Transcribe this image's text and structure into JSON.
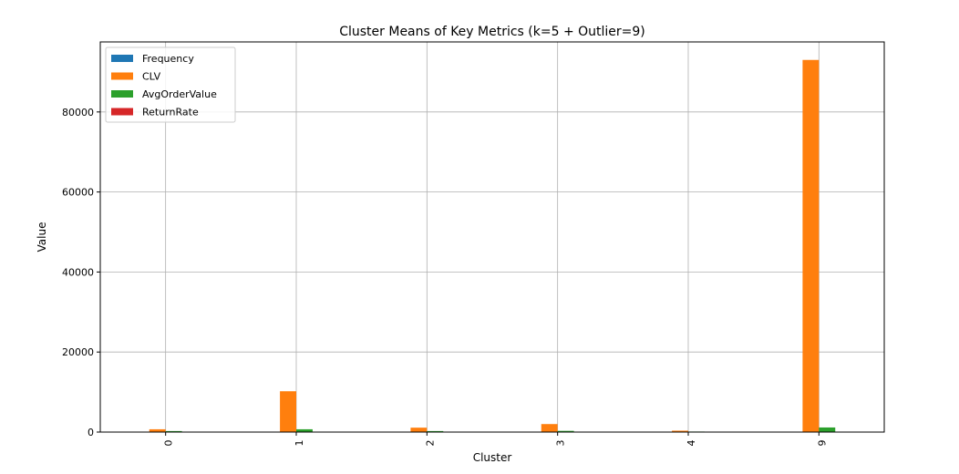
{
  "chart_data": {
    "type": "bar",
    "title": "Cluster Means of Key Metrics (k=5 + Outlier=9)",
    "xlabel": "Cluster",
    "ylabel": "Value",
    "categories": [
      "0",
      "1",
      "2",
      "3",
      "4",
      "9"
    ],
    "ylim": [
      0,
      97500
    ],
    "yticks": [
      0,
      20000,
      40000,
      60000,
      80000
    ],
    "ytick_labels": [
      "0",
      "20000",
      "40000",
      "60000",
      "80000"
    ],
    "grid": true,
    "legend_position": "top-left",
    "series": [
      {
        "name": "Frequency",
        "color": "#1f77b4",
        "values": [
          5,
          20,
          6,
          10,
          3,
          60
        ]
      },
      {
        "name": "CLV",
        "color": "#ff7f0e",
        "values": [
          700,
          10200,
          1100,
          2000,
          350,
          93000
        ]
      },
      {
        "name": "AvgOrderValue",
        "color": "#2ca02c",
        "values": [
          250,
          700,
          250,
          300,
          130,
          1150
        ]
      },
      {
        "name": "ReturnRate",
        "color": "#d62728",
        "values": [
          0.1,
          0.1,
          0.1,
          0.1,
          0.1,
          0.1
        ]
      }
    ]
  }
}
